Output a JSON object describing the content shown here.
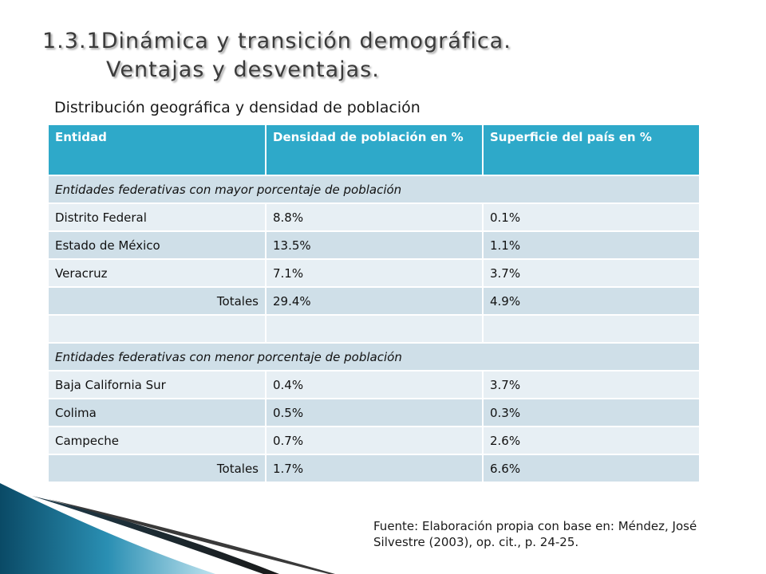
{
  "slide": {
    "title_line1": "1.3.1Dinámica y transición demográfica.",
    "title_line2": "Ventajas y desventajas.",
    "subtitle": "Distribución geográfica y densidad de población"
  },
  "table": {
    "headers": [
      "Entidad",
      "Densidad de población en %",
      "Superficie del país en %"
    ],
    "rows": [
      [
        "Entidades federativas con mayor porcentaje de población",
        "",
        ""
      ],
      [
        "Distrito Federal",
        "8.8%",
        "0.1%"
      ],
      [
        "Estado de México",
        "13.5%",
        "1.1%"
      ],
      [
        "Veracruz",
        "7.1%",
        "3.7%"
      ],
      [
        "Totales",
        "29.4%",
        "4.9%"
      ],
      [
        "",
        "",
        ""
      ],
      [
        "Entidades federativas con menor porcentaje de población",
        "",
        ""
      ],
      [
        "Baja California Sur",
        "0.4%",
        "3.7%"
      ],
      [
        "Colima",
        "0.5%",
        "0.3%"
      ],
      [
        "Campeche",
        "0.7%",
        "2.6%"
      ],
      [
        "Totales",
        "1.7%",
        "6.6%"
      ]
    ]
  },
  "source": "Fuente: Elaboración propia con base en: Méndez, José Silvestre (2003), op. cit., p. 24-25.",
  "colors": {
    "header": "#2ea9c9",
    "row_dark": "#cfdfe8",
    "row_light": "#e7eff4",
    "accent_dark": "#0a4a66"
  }
}
